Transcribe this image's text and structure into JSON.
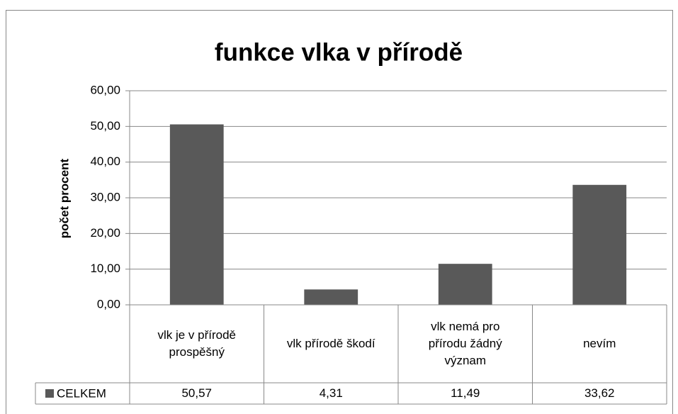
{
  "chart_data": {
    "type": "bar",
    "title": "funkce vlka v přírodě",
    "y_label": "počet procent",
    "categories": [
      "vlk je v přírodě prospěšný",
      "vlk přírodě škodí",
      "vlk nemá pro přírodu žádný význam",
      "nevím"
    ],
    "series": [
      {
        "name": "CELKEM",
        "color": "#595959",
        "values": [
          50.57,
          4.31,
          11.49,
          33.62
        ],
        "value_labels": [
          "50,57",
          "4,31",
          "11,49",
          "33,62"
        ]
      }
    ],
    "ylim": [
      0,
      60
    ],
    "yticks": [
      {
        "value": 0,
        "label": "0,00"
      },
      {
        "value": 10,
        "label": "10,00"
      },
      {
        "value": 20,
        "label": "20,00"
      },
      {
        "value": 30,
        "label": "30,00"
      },
      {
        "value": 40,
        "label": "40,00"
      },
      {
        "value": 50,
        "label": "50,00"
      },
      {
        "value": 60,
        "label": "60,00"
      }
    ],
    "grid": true,
    "data_table": true
  }
}
